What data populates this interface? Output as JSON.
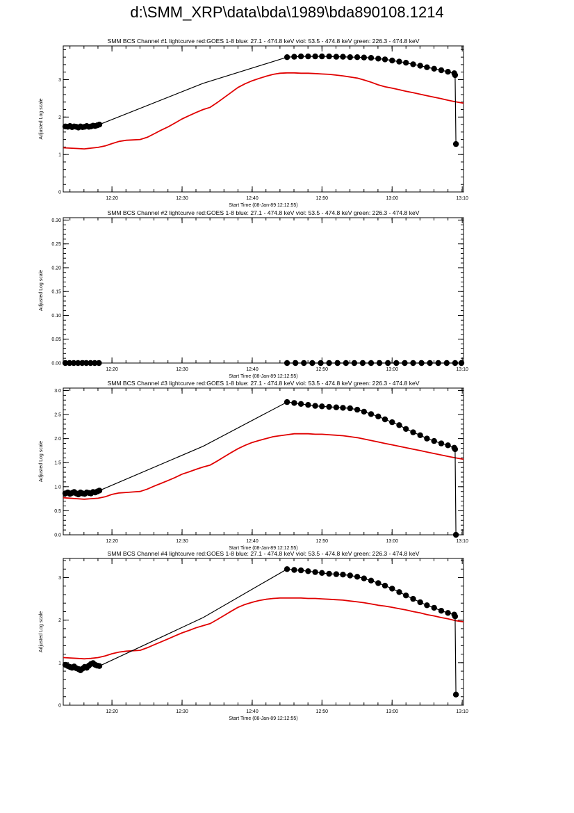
{
  "page": {
    "title": "d:\\SMM_XRP\\data\\bda\\1989\\bda890108.1214"
  },
  "colors": {
    "goes": "#e00000",
    "bcs": "#000000",
    "axis": "#000000"
  },
  "chart_data": [
    {
      "type": "line",
      "title": "SMM BCS Channel #1 lightcurve  red:GOES 1-8  blue: 27.1 - 474.8 keV  viol: 53.5 - 474.8 keV  green: 226.3 - 474.8 keV",
      "xlabel": "Start Time (08-Jan-89 12:12:55)",
      "ylabel": "Adjusted Log scale",
      "xlim": [
        12.217,
        13.17
      ],
      "ylim": [
        0,
        3.9
      ],
      "x_ticks": [
        12.333,
        12.5,
        12.667,
        12.833,
        13.0,
        13.167
      ],
      "x_tick_labels": [
        "12:20",
        "12:30",
        "12:40",
        "12:50",
        "13:00",
        "13:10"
      ],
      "y_ticks": [
        0,
        1,
        2,
        3
      ],
      "y_tick_labels": [
        "0",
        "1",
        "2",
        "3"
      ],
      "series": [
        {
          "color": "#e00000",
          "x": [
            12.217,
            12.25,
            12.267,
            12.283,
            12.3,
            12.317,
            12.333,
            12.35,
            12.367,
            12.383,
            12.4,
            12.417,
            12.433,
            12.45,
            12.467,
            12.483,
            12.5,
            12.517,
            12.533,
            12.55,
            12.567,
            12.583,
            12.6,
            12.617,
            12.633,
            12.65,
            12.667,
            12.683,
            12.7,
            12.717,
            12.733,
            12.75,
            12.767,
            12.783,
            12.8,
            12.817,
            12.833,
            12.85,
            12.867,
            12.883,
            12.9,
            12.917,
            12.933,
            12.95,
            12.967,
            12.983,
            13.0,
            13.017,
            13.033,
            13.05,
            13.067,
            13.083,
            13.1,
            13.117,
            13.133,
            13.15,
            13.17
          ],
          "y": [
            1.18,
            1.16,
            1.15,
            1.17,
            1.19,
            1.23,
            1.29,
            1.35,
            1.38,
            1.39,
            1.4,
            1.46,
            1.55,
            1.65,
            1.74,
            1.84,
            1.95,
            2.04,
            2.12,
            2.2,
            2.26,
            2.38,
            2.52,
            2.66,
            2.79,
            2.89,
            2.97,
            3.03,
            3.09,
            3.14,
            3.17,
            3.18,
            3.18,
            3.17,
            3.17,
            3.16,
            3.15,
            3.14,
            3.12,
            3.1,
            3.07,
            3.04,
            2.99,
            2.93,
            2.86,
            2.81,
            2.77,
            2.73,
            2.69,
            2.65,
            2.61,
            2.57,
            2.53,
            2.49,
            2.45,
            2.41,
            2.37
          ]
        },
        {
          "color": "#000000",
          "x": [
            12.222,
            12.228,
            12.233,
            12.238,
            12.243,
            12.248,
            12.253,
            12.258,
            12.263,
            12.268,
            12.273,
            12.278,
            12.283,
            12.288,
            12.293,
            12.298,
            12.303,
            12.55,
            12.75,
            12.767,
            12.783,
            12.8,
            12.817,
            12.833,
            12.85,
            12.867,
            12.883,
            12.9,
            12.917,
            12.933,
            12.95,
            12.967,
            12.983,
            13.0,
            13.017,
            13.033,
            13.05,
            13.067,
            13.083,
            13.1,
            13.117,
            13.133,
            13.148,
            13.15,
            13.152
          ],
          "y": [
            1.75,
            1.74,
            1.76,
            1.73,
            1.75,
            1.74,
            1.72,
            1.75,
            1.73,
            1.74,
            1.76,
            1.74,
            1.75,
            1.77,
            1.76,
            1.78,
            1.8,
            2.9,
            3.6,
            3.61,
            3.62,
            3.62,
            3.62,
            3.62,
            3.62,
            3.61,
            3.61,
            3.6,
            3.6,
            3.59,
            3.58,
            3.56,
            3.54,
            3.51,
            3.48,
            3.45,
            3.41,
            3.37,
            3.33,
            3.29,
            3.25,
            3.21,
            3.17,
            3.12,
            1.28
          ],
          "markers": true
        }
      ]
    },
    {
      "type": "line",
      "title": "SMM BCS Channel #2 lightcurve  red:GOES 1-8  blue: 27.1 - 474.8 keV  viol: 53.5 - 474.8 keV  green: 226.3 - 474.8 keV",
      "xlabel": "Start Time (08-Jan-89 12:12:55)",
      "ylabel": "Adjusted Log scale",
      "xlim": [
        12.217,
        13.17
      ],
      "ylim": [
        0,
        0.305
      ],
      "x_ticks": [
        12.333,
        12.5,
        12.667,
        12.833,
        13.0,
        13.167
      ],
      "x_tick_labels": [
        "12:20",
        "12:30",
        "12:40",
        "12:50",
        "13:00",
        "13:10"
      ],
      "y_ticks": [
        0.0,
        0.05,
        0.1,
        0.15,
        0.2,
        0.25,
        0.3
      ],
      "y_tick_labels": [
        "0.00",
        "0.05",
        "0.10",
        "0.15",
        "0.20",
        "0.25",
        "0.30"
      ],
      "series": [
        {
          "color": "#000000",
          "x": [
            12.222,
            12.232,
            12.242,
            12.252,
            12.262,
            12.272,
            12.282,
            12.292,
            12.302
          ],
          "y": [
            0,
            0,
            0,
            0,
            0,
            0,
            0,
            0,
            0
          ],
          "markers": true
        },
        {
          "color": "#000000",
          "x": [
            12.75,
            12.77,
            12.79,
            12.81,
            12.83,
            12.85,
            12.87,
            12.89,
            12.91,
            12.93,
            12.95,
            12.97,
            12.99,
            13.01,
            13.03,
            13.05,
            13.07,
            13.09,
            13.11,
            13.13,
            13.15,
            13.165
          ],
          "y": [
            0,
            0,
            0,
            0,
            0,
            0,
            0,
            0,
            0,
            0,
            0,
            0,
            0,
            0,
            0,
            0,
            0,
            0,
            0,
            0,
            0,
            0
          ],
          "markers": true
        }
      ]
    },
    {
      "type": "line",
      "title": "SMM BCS Channel #3 lightcurve  red:GOES 1-8  blue: 27.1 - 474.8 keV  viol: 53.5 - 474.8 keV  green: 226.3 - 474.8 keV",
      "xlabel": "Start Time (08-Jan-89 12:12:55)",
      "ylabel": "Adjusted Log scale",
      "xlim": [
        12.217,
        13.17
      ],
      "ylim": [
        0,
        3.05
      ],
      "x_ticks": [
        12.333,
        12.5,
        12.667,
        12.833,
        13.0,
        13.167
      ],
      "x_tick_labels": [
        "12:20",
        "12:30",
        "12:40",
        "12:50",
        "13:00",
        "13:10"
      ],
      "y_ticks": [
        0.0,
        0.5,
        1.0,
        1.5,
        2.0,
        2.5,
        3.0
      ],
      "y_tick_labels": [
        "0.0",
        "0.5",
        "1.0",
        "1.5",
        "2.0",
        "2.5",
        "3.0"
      ],
      "series": [
        {
          "color": "#e00000",
          "x": [
            12.217,
            12.25,
            12.267,
            12.283,
            12.3,
            12.317,
            12.333,
            12.35,
            12.367,
            12.383,
            12.4,
            12.417,
            12.433,
            12.45,
            12.467,
            12.483,
            12.5,
            12.517,
            12.533,
            12.55,
            12.567,
            12.583,
            12.6,
            12.617,
            12.633,
            12.65,
            12.667,
            12.683,
            12.7,
            12.717,
            12.733,
            12.75,
            12.767,
            12.783,
            12.8,
            12.817,
            12.833,
            12.85,
            12.867,
            12.883,
            12.9,
            12.917,
            12.933,
            12.95,
            12.967,
            12.983,
            13.0,
            13.017,
            13.033,
            13.05,
            13.067,
            13.083,
            13.1,
            13.117,
            13.133,
            13.15,
            13.17
          ],
          "y": [
            0.77,
            0.75,
            0.74,
            0.75,
            0.76,
            0.79,
            0.84,
            0.87,
            0.88,
            0.89,
            0.9,
            0.95,
            1.01,
            1.07,
            1.13,
            1.19,
            1.26,
            1.31,
            1.36,
            1.41,
            1.45,
            1.53,
            1.62,
            1.71,
            1.79,
            1.86,
            1.92,
            1.96,
            2.0,
            2.04,
            2.06,
            2.08,
            2.1,
            2.1,
            2.1,
            2.09,
            2.09,
            2.08,
            2.07,
            2.06,
            2.04,
            2.02,
            1.99,
            1.96,
            1.93,
            1.9,
            1.87,
            1.84,
            1.81,
            1.78,
            1.75,
            1.72,
            1.69,
            1.66,
            1.63,
            1.6,
            1.57
          ]
        },
        {
          "color": "#000000",
          "x": [
            12.222,
            12.228,
            12.233,
            12.238,
            12.243,
            12.248,
            12.253,
            12.258,
            12.263,
            12.268,
            12.273,
            12.278,
            12.283,
            12.288,
            12.293,
            12.298,
            12.303,
            12.55,
            12.75,
            12.767,
            12.783,
            12.8,
            12.817,
            12.833,
            12.85,
            12.867,
            12.883,
            12.9,
            12.917,
            12.933,
            12.95,
            12.967,
            12.983,
            13.0,
            13.017,
            13.033,
            13.05,
            13.067,
            13.083,
            13.1,
            13.117,
            13.133,
            13.148,
            13.15,
            13.152
          ],
          "y": [
            0.86,
            0.88,
            0.85,
            0.87,
            0.89,
            0.86,
            0.84,
            0.88,
            0.86,
            0.85,
            0.88,
            0.87,
            0.86,
            0.89,
            0.88,
            0.9,
            0.92,
            1.84,
            2.76,
            2.74,
            2.72,
            2.7,
            2.68,
            2.67,
            2.66,
            2.65,
            2.64,
            2.63,
            2.6,
            2.56,
            2.51,
            2.46,
            2.4,
            2.34,
            2.28,
            2.2,
            2.13,
            2.07,
            2.0,
            1.95,
            1.9,
            1.86,
            1.81,
            1.78,
            0.0
          ],
          "markers": true
        }
      ]
    },
    {
      "type": "line",
      "title": "SMM BCS Channel #4 lightcurve  red:GOES 1-8  blue: 27.1 - 474.8 keV  viol: 53.5 - 474.8 keV  green: 226.3 - 474.8 keV",
      "xlabel": "Start Time (08-Jan-89 12:12:55)",
      "ylabel": "Adjusted Log scale",
      "xlim": [
        12.217,
        13.17
      ],
      "ylim": [
        0,
        3.45
      ],
      "x_ticks": [
        12.333,
        12.5,
        12.667,
        12.833,
        13.0,
        13.167
      ],
      "x_tick_labels": [
        "12:20",
        "12:30",
        "12:40",
        "12:50",
        "13:00",
        "13:10"
      ],
      "y_ticks": [
        0,
        1,
        2,
        3
      ],
      "y_tick_labels": [
        "0",
        "1",
        "2",
        "3"
      ],
      "series": [
        {
          "color": "#e00000",
          "x": [
            12.217,
            12.25,
            12.267,
            12.283,
            12.3,
            12.317,
            12.333,
            12.35,
            12.367,
            12.383,
            12.4,
            12.417,
            12.433,
            12.45,
            12.467,
            12.483,
            12.5,
            12.517,
            12.533,
            12.55,
            12.567,
            12.583,
            12.6,
            12.617,
            12.633,
            12.65,
            12.667,
            12.683,
            12.7,
            12.717,
            12.733,
            12.75,
            12.767,
            12.783,
            12.8,
            12.817,
            12.833,
            12.85,
            12.867,
            12.883,
            12.9,
            12.917,
            12.933,
            12.95,
            12.967,
            12.983,
            13.0,
            13.017,
            13.033,
            13.05,
            13.067,
            13.083,
            13.1,
            13.117,
            13.133,
            13.15,
            13.17
          ],
          "y": [
            1.12,
            1.1,
            1.09,
            1.1,
            1.12,
            1.16,
            1.21,
            1.25,
            1.27,
            1.28,
            1.29,
            1.35,
            1.42,
            1.49,
            1.56,
            1.63,
            1.7,
            1.76,
            1.82,
            1.87,
            1.92,
            2.01,
            2.11,
            2.21,
            2.3,
            2.37,
            2.42,
            2.46,
            2.49,
            2.51,
            2.52,
            2.52,
            2.52,
            2.52,
            2.51,
            2.51,
            2.5,
            2.49,
            2.48,
            2.47,
            2.45,
            2.43,
            2.41,
            2.38,
            2.35,
            2.33,
            2.3,
            2.27,
            2.24,
            2.2,
            2.17,
            2.13,
            2.1,
            2.06,
            2.03,
            1.99,
            1.96
          ]
        },
        {
          "color": "#000000",
          "x": [
            12.222,
            12.228,
            12.233,
            12.238,
            12.243,
            12.248,
            12.253,
            12.258,
            12.263,
            12.268,
            12.273,
            12.278,
            12.283,
            12.288,
            12.293,
            12.298,
            12.303,
            12.55,
            12.75,
            12.767,
            12.783,
            12.8,
            12.817,
            12.833,
            12.85,
            12.867,
            12.883,
            12.9,
            12.917,
            12.933,
            12.95,
            12.967,
            12.983,
            13.0,
            13.017,
            13.033,
            13.05,
            13.067,
            13.083,
            13.1,
            13.117,
            13.133,
            13.148,
            13.15,
            13.152
          ],
          "y": [
            0.95,
            0.92,
            0.9,
            0.88,
            0.91,
            0.87,
            0.85,
            0.82,
            0.86,
            0.9,
            0.88,
            0.93,
            0.97,
            0.99,
            0.95,
            0.93,
            0.92,
            2.06,
            3.2,
            3.18,
            3.17,
            3.15,
            3.13,
            3.11,
            3.09,
            3.08,
            3.07,
            3.05,
            3.02,
            2.98,
            2.93,
            2.87,
            2.81,
            2.74,
            2.66,
            2.58,
            2.5,
            2.42,
            2.35,
            2.29,
            2.22,
            2.17,
            2.13,
            2.09,
            0.25
          ],
          "markers": true
        }
      ]
    }
  ]
}
